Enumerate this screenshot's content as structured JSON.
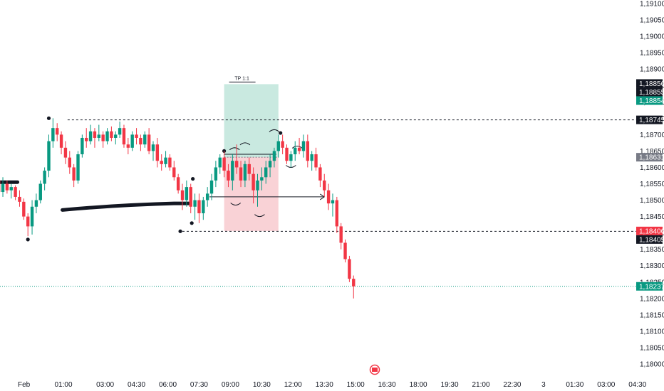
{
  "chart_data": {
    "type": "candlestick",
    "title": "",
    "colors": {
      "up": "#089981",
      "down": "#f23645",
      "target_zone": "#b2dfd3",
      "stop_zone": "#f7c3c8",
      "marker": "#131722",
      "current_price_line": "#089981"
    },
    "y_ticks": [
      "1,19100",
      "1,19050",
      "1,19000",
      "1,18950",
      "1,18900",
      "1,18850",
      "1,18800",
      "1,18750",
      "1,18700",
      "1,18650",
      "1,18600",
      "1,18550",
      "1,18500",
      "1,18450",
      "1,18400",
      "1,18350",
      "1,18300",
      "1,18250",
      "1,18200",
      "1,18150",
      "1,18100",
      "1,18050",
      "1,18000"
    ],
    "ylim": [
      1.17985,
      1.19105
    ],
    "x_ticks": [
      {
        "label": "Feb",
        "t": -2.5
      },
      {
        "label": "01:00",
        "t": 1
      },
      {
        "label": "03:00",
        "t": 3
      },
      {
        "label": "04:30",
        "t": 4.5
      },
      {
        "label": "06:00",
        "t": 6
      },
      {
        "label": "07:30",
        "t": 7.5
      },
      {
        "label": "09:00",
        "t": 9
      },
      {
        "label": "10:30",
        "t": 10.5
      },
      {
        "label": "12:00",
        "t": 12
      },
      {
        "label": "13:30",
        "t": 13.5
      },
      {
        "label": "15:00",
        "t": 15
      },
      {
        "label": "16:30",
        "t": 16.5
      },
      {
        "label": "18:00",
        "t": 18
      },
      {
        "label": "19:30",
        "t": 19.5
      },
      {
        "label": "21:00",
        "t": 21
      },
      {
        "label": "22:30",
        "t": 22.5
      },
      {
        "label": "3",
        "t": 24
      },
      {
        "label": "01:30",
        "t": 25.5
      },
      {
        "label": "03:00",
        "t": 27
      },
      {
        "label": "04:30",
        "t": 28.5
      }
    ],
    "price_badges": [
      {
        "label": "1,18856",
        "price": 1.18856,
        "color": "#131722"
      },
      {
        "label": "1,18855",
        "price": 1.18855,
        "color": "#131722"
      },
      {
        "label": "1,18854",
        "price": 1.18854,
        "color": "#089981"
      },
      {
        "label": "1,18745",
        "price": 1.18745,
        "color": "#131722"
      },
      {
        "label": "1,18631",
        "price": 1.18631,
        "color": "#787b86"
      },
      {
        "label": "1,18406",
        "price": 1.18406,
        "color": "#f23645"
      },
      {
        "label": "1,18405",
        "price": 1.18405,
        "color": "#131722"
      },
      {
        "label": "1,18237",
        "price": 1.18237,
        "color": "#089981"
      }
    ],
    "levels": [
      {
        "price": 1.18745,
        "t_start": 1.2,
        "style": "dashed"
      },
      {
        "price": 1.18405,
        "t_start": 6.7,
        "style": "dashed"
      },
      {
        "price": 1.18237,
        "t_start": -2.6,
        "style": "dotted-current"
      }
    ],
    "position": {
      "t_start": 8.7,
      "t_end": 11.3,
      "entry": 1.18631,
      "target": 1.18854,
      "stop": 1.18406,
      "target_label": "TP 1:1"
    },
    "candles": [
      {
        "t": -2.5,
        "o": 1.1859,
        "h": 1.1861,
        "l": 1.1852,
        "c": 1.18545
      },
      {
        "t": -2.3,
        "o": 1.18545,
        "h": 1.18575,
        "l": 1.185,
        "c": 1.1856
      },
      {
        "t": -2.1,
        "o": 1.1856,
        "h": 1.18575,
        "l": 1.18515,
        "c": 1.18525
      },
      {
        "t": -1.9,
        "o": 1.18525,
        "h": 1.1857,
        "l": 1.1851,
        "c": 1.1855
      },
      {
        "t": -1.7,
        "o": 1.1855,
        "h": 1.1856,
        "l": 1.1852,
        "c": 1.1853
      },
      {
        "t": -1.5,
        "o": 1.1853,
        "h": 1.1855,
        "l": 1.18505,
        "c": 1.1854
      },
      {
        "t": -1.3,
        "o": 1.1854,
        "h": 1.18545,
        "l": 1.185,
        "c": 1.1851
      },
      {
        "t": -1.1,
        "o": 1.1851,
        "h": 1.1853,
        "l": 1.1848,
        "c": 1.18495
      },
      {
        "t": -0.9,
        "o": 1.18495,
        "h": 1.18505,
        "l": 1.1844,
        "c": 1.1845
      },
      {
        "t": -0.7,
        "o": 1.1845,
        "h": 1.1846,
        "l": 1.1839,
        "c": 1.1842
      },
      {
        "t": -0.5,
        "o": 1.1842,
        "h": 1.185,
        "l": 1.18395,
        "c": 1.1848
      },
      {
        "t": -0.3,
        "o": 1.1848,
        "h": 1.1852,
        "l": 1.1846,
        "c": 1.185
      },
      {
        "t": -0.1,
        "o": 1.185,
        "h": 1.1856,
        "l": 1.1849,
        "c": 1.1855
      },
      {
        "t": 0.1,
        "o": 1.1855,
        "h": 1.186,
        "l": 1.1853,
        "c": 1.1859
      },
      {
        "t": 0.3,
        "o": 1.1859,
        "h": 1.187,
        "l": 1.1857,
        "c": 1.1868
      },
      {
        "t": 0.5,
        "o": 1.1868,
        "h": 1.1875,
        "l": 1.1866,
        "c": 1.1872
      },
      {
        "t": 0.7,
        "o": 1.1872,
        "h": 1.18735,
        "l": 1.1868,
        "c": 1.187
      },
      {
        "t": 0.9,
        "o": 1.187,
        "h": 1.1871,
        "l": 1.1864,
        "c": 1.1866
      },
      {
        "t": 1.1,
        "o": 1.1866,
        "h": 1.1868,
        "l": 1.1861,
        "c": 1.1863
      },
      {
        "t": 1.3,
        "o": 1.1863,
        "h": 1.1865,
        "l": 1.1858,
        "c": 1.186
      },
      {
        "t": 1.5,
        "o": 1.186,
        "h": 1.1861,
        "l": 1.1854,
        "c": 1.1856
      },
      {
        "t": 1.7,
        "o": 1.1856,
        "h": 1.1865,
        "l": 1.1855,
        "c": 1.1864
      },
      {
        "t": 1.9,
        "o": 1.1864,
        "h": 1.187,
        "l": 1.1863,
        "c": 1.1869
      },
      {
        "t": 2.1,
        "o": 1.1869,
        "h": 1.1872,
        "l": 1.1866,
        "c": 1.1868
      },
      {
        "t": 2.3,
        "o": 1.1868,
        "h": 1.1873,
        "l": 1.1867,
        "c": 1.1871
      },
      {
        "t": 2.5,
        "o": 1.1871,
        "h": 1.1872,
        "l": 1.1866,
        "c": 1.1869
      },
      {
        "t": 2.7,
        "o": 1.1869,
        "h": 1.1873,
        "l": 1.1868,
        "c": 1.187
      },
      {
        "t": 2.9,
        "o": 1.187,
        "h": 1.1871,
        "l": 1.1866,
        "c": 1.1868
      },
      {
        "t": 3.1,
        "o": 1.1868,
        "h": 1.1872,
        "l": 1.1867,
        "c": 1.1871
      },
      {
        "t": 3.3,
        "o": 1.1871,
        "h": 1.18725,
        "l": 1.1868,
        "c": 1.1869
      },
      {
        "t": 3.5,
        "o": 1.1869,
        "h": 1.1871,
        "l": 1.1867,
        "c": 1.187
      },
      {
        "t": 3.7,
        "o": 1.187,
        "h": 1.1874,
        "l": 1.1869,
        "c": 1.1872
      },
      {
        "t": 3.9,
        "o": 1.1872,
        "h": 1.1873,
        "l": 1.1866,
        "c": 1.1867
      },
      {
        "t": 4.1,
        "o": 1.1867,
        "h": 1.1869,
        "l": 1.1864,
        "c": 1.1866
      },
      {
        "t": 4.3,
        "o": 1.1866,
        "h": 1.1871,
        "l": 1.1865,
        "c": 1.187
      },
      {
        "t": 4.5,
        "o": 1.187,
        "h": 1.1872,
        "l": 1.1867,
        "c": 1.1869
      },
      {
        "t": 4.7,
        "o": 1.1869,
        "h": 1.187,
        "l": 1.1865,
        "c": 1.1867
      },
      {
        "t": 4.9,
        "o": 1.1867,
        "h": 1.1871,
        "l": 1.1866,
        "c": 1.187
      },
      {
        "t": 5.1,
        "o": 1.187,
        "h": 1.1872,
        "l": 1.1864,
        "c": 1.1865
      },
      {
        "t": 5.3,
        "o": 1.1865,
        "h": 1.1868,
        "l": 1.1862,
        "c": 1.1867
      },
      {
        "t": 5.5,
        "o": 1.1867,
        "h": 1.1869,
        "l": 1.186,
        "c": 1.1862
      },
      {
        "t": 5.7,
        "o": 1.1862,
        "h": 1.1864,
        "l": 1.1859,
        "c": 1.1861
      },
      {
        "t": 5.9,
        "o": 1.1861,
        "h": 1.1865,
        "l": 1.186,
        "c": 1.1863
      },
      {
        "t": 6.1,
        "o": 1.1863,
        "h": 1.1864,
        "l": 1.1859,
        "c": 1.186
      },
      {
        "t": 6.3,
        "o": 1.186,
        "h": 1.1862,
        "l": 1.1856,
        "c": 1.1857
      },
      {
        "t": 6.5,
        "o": 1.1857,
        "h": 1.1858,
        "l": 1.1852,
        "c": 1.1853
      },
      {
        "t": 6.7,
        "o": 1.1853,
        "h": 1.1855,
        "l": 1.1847,
        "c": 1.185
      },
      {
        "t": 6.9,
        "o": 1.185,
        "h": 1.1856,
        "l": 1.1848,
        "c": 1.1854
      },
      {
        "t": 7.1,
        "o": 1.1854,
        "h": 1.1855,
        "l": 1.1846,
        "c": 1.1848
      },
      {
        "t": 7.3,
        "o": 1.1848,
        "h": 1.1852,
        "l": 1.1844,
        "c": 1.185
      },
      {
        "t": 7.5,
        "o": 1.185,
        "h": 1.1852,
        "l": 1.1843,
        "c": 1.1846
      },
      {
        "t": 7.7,
        "o": 1.1846,
        "h": 1.1851,
        "l": 1.1844,
        "c": 1.185
      },
      {
        "t": 7.9,
        "o": 1.185,
        "h": 1.1854,
        "l": 1.1848,
        "c": 1.1852
      },
      {
        "t": 8.1,
        "o": 1.1852,
        "h": 1.1858,
        "l": 1.185,
        "c": 1.1856
      },
      {
        "t": 8.3,
        "o": 1.1856,
        "h": 1.1862,
        "l": 1.1854,
        "c": 1.186
      },
      {
        "t": 8.5,
        "o": 1.186,
        "h": 1.1864,
        "l": 1.1858,
        "c": 1.1863
      },
      {
        "t": 8.7,
        "o": 1.1863,
        "h": 1.1865,
        "l": 1.1857,
        "c": 1.1859
      },
      {
        "t": 8.9,
        "o": 1.1859,
        "h": 1.1861,
        "l": 1.1854,
        "c": 1.1856
      },
      {
        "t": 9.1,
        "o": 1.1856,
        "h": 1.1864,
        "l": 1.1853,
        "c": 1.1862
      },
      {
        "t": 9.3,
        "o": 1.1862,
        "h": 1.1867,
        "l": 1.1858,
        "c": 1.186
      },
      {
        "t": 9.5,
        "o": 1.186,
        "h": 1.1862,
        "l": 1.1854,
        "c": 1.1856
      },
      {
        "t": 9.7,
        "o": 1.1856,
        "h": 1.1862,
        "l": 1.1854,
        "c": 1.1861
      },
      {
        "t": 9.9,
        "o": 1.1861,
        "h": 1.1863,
        "l": 1.1856,
        "c": 1.1858
      },
      {
        "t": 10.1,
        "o": 1.1858,
        "h": 1.186,
        "l": 1.1849,
        "c": 1.1853
      },
      {
        "t": 10.3,
        "o": 1.1853,
        "h": 1.1858,
        "l": 1.1848,
        "c": 1.1856
      },
      {
        "t": 10.5,
        "o": 1.1856,
        "h": 1.186,
        "l": 1.1853,
        "c": 1.1857
      },
      {
        "t": 10.7,
        "o": 1.1857,
        "h": 1.1862,
        "l": 1.1855,
        "c": 1.186
      },
      {
        "t": 10.9,
        "o": 1.186,
        "h": 1.1864,
        "l": 1.1857,
        "c": 1.1862
      },
      {
        "t": 11.1,
        "o": 1.1862,
        "h": 1.1866,
        "l": 1.186,
        "c": 1.1865
      },
      {
        "t": 11.3,
        "o": 1.1865,
        "h": 1.187,
        "l": 1.1863,
        "c": 1.1868
      },
      {
        "t": 11.5,
        "o": 1.1868,
        "h": 1.187,
        "l": 1.1864,
        "c": 1.1866
      },
      {
        "t": 11.7,
        "o": 1.1866,
        "h": 1.1867,
        "l": 1.1861,
        "c": 1.1862
      },
      {
        "t": 11.9,
        "o": 1.1862,
        "h": 1.1865,
        "l": 1.186,
        "c": 1.1864
      },
      {
        "t": 12.1,
        "o": 1.1864,
        "h": 1.1868,
        "l": 1.1862,
        "c": 1.1866
      },
      {
        "t": 12.3,
        "o": 1.1866,
        "h": 1.1869,
        "l": 1.1864,
        "c": 1.1865
      },
      {
        "t": 12.5,
        "o": 1.1865,
        "h": 1.187,
        "l": 1.1863,
        "c": 1.1868
      },
      {
        "t": 12.7,
        "o": 1.1868,
        "h": 1.187,
        "l": 1.186,
        "c": 1.1862
      },
      {
        "t": 12.9,
        "o": 1.1862,
        "h": 1.1865,
        "l": 1.1859,
        "c": 1.1864
      },
      {
        "t": 13.1,
        "o": 1.1864,
        "h": 1.1866,
        "l": 1.1859,
        "c": 1.186
      },
      {
        "t": 13.3,
        "o": 1.186,
        "h": 1.1861,
        "l": 1.1854,
        "c": 1.1856
      },
      {
        "t": 13.5,
        "o": 1.1856,
        "h": 1.1858,
        "l": 1.1851,
        "c": 1.1853
      },
      {
        "t": 13.7,
        "o": 1.1853,
        "h": 1.1855,
        "l": 1.1847,
        "c": 1.1849
      },
      {
        "t": 13.9,
        "o": 1.1849,
        "h": 1.1852,
        "l": 1.1845,
        "c": 1.185
      },
      {
        "t": 14.1,
        "o": 1.185,
        "h": 1.1851,
        "l": 1.184,
        "c": 1.1842
      },
      {
        "t": 14.3,
        "o": 1.1842,
        "h": 1.1843,
        "l": 1.1835,
        "c": 1.1837
      },
      {
        "t": 14.5,
        "o": 1.1837,
        "h": 1.1838,
        "l": 1.1831,
        "c": 1.1832
      },
      {
        "t": 14.7,
        "o": 1.1832,
        "h": 1.1833,
        "l": 1.1825,
        "c": 1.1826
      },
      {
        "t": 14.9,
        "o": 1.1826,
        "h": 1.1827,
        "l": 1.182,
        "c": 1.18237
      }
    ]
  },
  "icons": {
    "event_marker": "flag-event-icon"
  }
}
